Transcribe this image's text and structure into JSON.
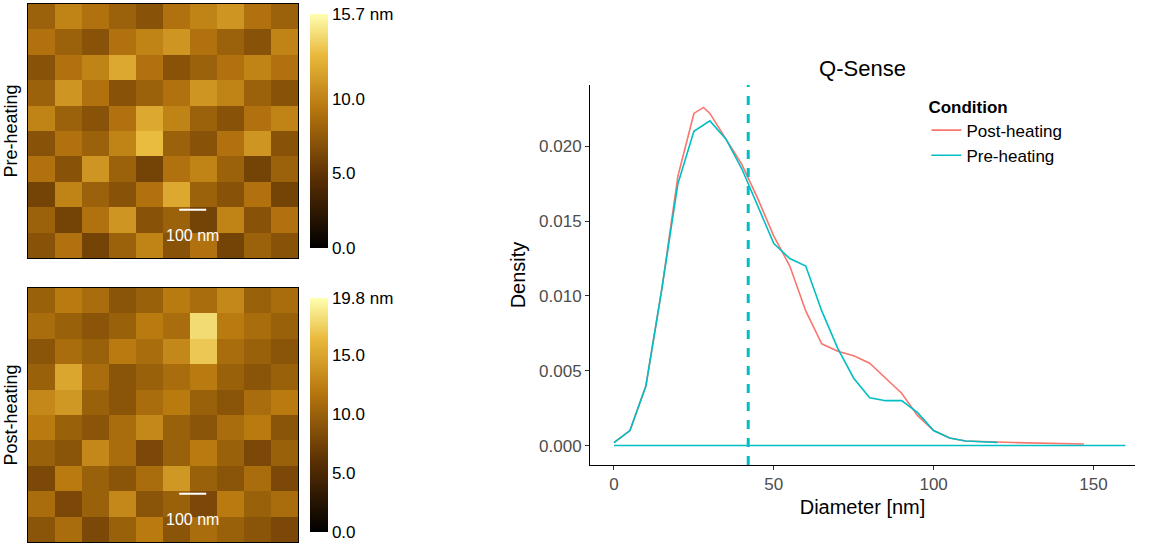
{
  "chart_data": [
    {
      "type": "heatmap",
      "ylabel": "Pre-heating",
      "tick_labels": false,
      "x": [
        50,
        150,
        250,
        350,
        450,
        550,
        650,
        750,
        850,
        950
      ],
      "y": [
        50,
        150,
        250,
        350,
        450,
        550,
        650,
        750,
        850,
        950
      ],
      "xlim": [
        0,
        1000
      ],
      "ylim": [
        0,
        1000
      ],
      "z": [
        [
          7,
          9,
          6,
          8,
          10,
          7,
          9,
          6,
          8,
          7
        ],
        [
          8,
          6,
          9,
          11,
          7,
          8,
          6,
          10,
          7,
          9
        ],
        [
          6,
          10,
          8,
          7,
          9,
          12,
          8,
          7,
          9,
          6
        ],
        [
          9,
          7,
          11,
          8,
          6,
          9,
          10,
          8,
          6,
          8
        ],
        [
          7,
          9,
          8,
          10,
          13,
          8,
          7,
          9,
          11,
          7
        ],
        [
          10,
          8,
          7,
          9,
          12,
          10,
          8,
          7,
          9,
          10
        ],
        [
          8,
          11,
          9,
          7,
          8,
          9,
          11,
          10,
          8,
          7
        ],
        [
          7,
          9,
          10,
          12,
          9,
          7,
          8,
          9,
          10,
          9
        ],
        [
          9,
          8,
          7,
          9,
          10,
          11,
          9,
          8,
          7,
          10
        ],
        [
          8,
          10,
          9,
          8,
          7,
          9,
          10,
          11,
          9,
          8
        ]
      ],
      "colorbar": {
        "range": [
          0,
          15.7
        ],
        "ticks": [
          {
            "value": 0,
            "label": "0.0"
          },
          {
            "value": 5,
            "label": "5.0"
          },
          {
            "value": 10,
            "label": "10.0"
          },
          {
            "value": 15.7,
            "label": "15.7 nm"
          }
        ]
      },
      "scale_bar": {
        "length": 100,
        "label": "100 nm",
        "color": "#ffffff"
      }
    },
    {
      "type": "heatmap",
      "ylabel": "Post-heating",
      "tick_labels": false,
      "x": [
        50,
        150,
        250,
        350,
        450,
        550,
        650,
        750,
        850,
        950
      ],
      "y": [
        50,
        150,
        250,
        350,
        450,
        550,
        650,
        750,
        850,
        950
      ],
      "xlim": [
        0,
        1000
      ],
      "ylim": [
        0,
        1000
      ],
      "z": [
        [
          9,
          11,
          8,
          10,
          12,
          9,
          11,
          10,
          9,
          8
        ],
        [
          11,
          8,
          10,
          13,
          9,
          10,
          8,
          12,
          10,
          11
        ],
        [
          8,
          12,
          10,
          9,
          11,
          14,
          10,
          9,
          11,
          8
        ],
        [
          10,
          9,
          13,
          11,
          8,
          10,
          12,
          10,
          8,
          10
        ],
        [
          12,
          10,
          9,
          11,
          13,
          10,
          9,
          11,
          12,
          9
        ],
        [
          13,
          14,
          10,
          9,
          11,
          12,
          10,
          9,
          11,
          12
        ],
        [
          10,
          15,
          11,
          9,
          10,
          11,
          12,
          10,
          9,
          10
        ],
        [
          9,
          11,
          10,
          12,
          11,
          13,
          17,
          11,
          10,
          9
        ],
        [
          11,
          10,
          9,
          10,
          12,
          11,
          18,
          12,
          11,
          10
        ],
        [
          10,
          12,
          11,
          9,
          10,
          12,
          11,
          13,
          10,
          11
        ]
      ],
      "colorbar": {
        "range": [
          0,
          19.8
        ],
        "ticks": [
          {
            "value": 0,
            "label": "0.0"
          },
          {
            "value": 5,
            "label": "5.0"
          },
          {
            "value": 10,
            "label": "10.0"
          },
          {
            "value": 15,
            "label": "15.0"
          },
          {
            "value": 19.8,
            "label": "19.8 nm"
          }
        ]
      },
      "scale_bar": {
        "length": 100,
        "label": "100 nm",
        "color": "#ffffff"
      }
    },
    {
      "type": "line",
      "title": "Q-Sense",
      "xlabel": "Diameter [nm]",
      "ylabel": "Density",
      "legend_title": "Condition",
      "legend": "top-right",
      "xlim": [
        -7.5,
        163
      ],
      "ylim": [
        -0.0013,
        0.0241
      ],
      "xticks": [
        0,
        50,
        100,
        150
      ],
      "yticks": [
        {
          "value": 0,
          "label": "0.000"
        },
        {
          "value": 0.005,
          "label": "0.005"
        },
        {
          "value": 0.01,
          "label": "0.010"
        },
        {
          "value": 0.015,
          "label": "0.015"
        },
        {
          "value": 0.02,
          "label": "0.020"
        }
      ],
      "series": [
        {
          "name": "Post-heating",
          "color": "#F8766D",
          "x": [
            0,
            5,
            10,
            15,
            20,
            25,
            28,
            30,
            35,
            40,
            45,
            50,
            55,
            60,
            65,
            70,
            75,
            80,
            85,
            90,
            95,
            100,
            105,
            110,
            125,
            147
          ],
          "values": [
            0.0002,
            0.001,
            0.004,
            0.0105,
            0.018,
            0.0222,
            0.0226,
            0.0222,
            0.0205,
            0.0188,
            0.0165,
            0.014,
            0.012,
            0.009,
            0.0068,
            0.0063,
            0.006,
            0.0055,
            0.0045,
            0.0035,
            0.002,
            0.001,
            0.0005,
            0.0003,
            0.0002,
            0.0001
          ]
        },
        {
          "name": "Pre-heating",
          "color": "#00BFC4",
          "x": [
            0,
            5,
            10,
            15,
            20,
            25,
            30,
            35,
            40,
            45,
            50,
            55,
            60,
            65,
            70,
            75,
            80,
            85,
            90,
            95,
            100,
            105,
            110,
            120
          ],
          "values": [
            0.0002,
            0.001,
            0.004,
            0.0105,
            0.0175,
            0.021,
            0.0217,
            0.0205,
            0.0185,
            0.016,
            0.0135,
            0.0125,
            0.012,
            0.009,
            0.0065,
            0.0045,
            0.0032,
            0.003,
            0.003,
            0.0022,
            0.001,
            0.0005,
            0.0003,
            0.0002
          ]
        }
      ],
      "baseline": {
        "y": 0,
        "x": [
          0,
          160
        ],
        "color": "#00BFC4"
      },
      "vline": {
        "x": 42,
        "color": "#00BFC4",
        "line_style": "dash"
      }
    }
  ]
}
